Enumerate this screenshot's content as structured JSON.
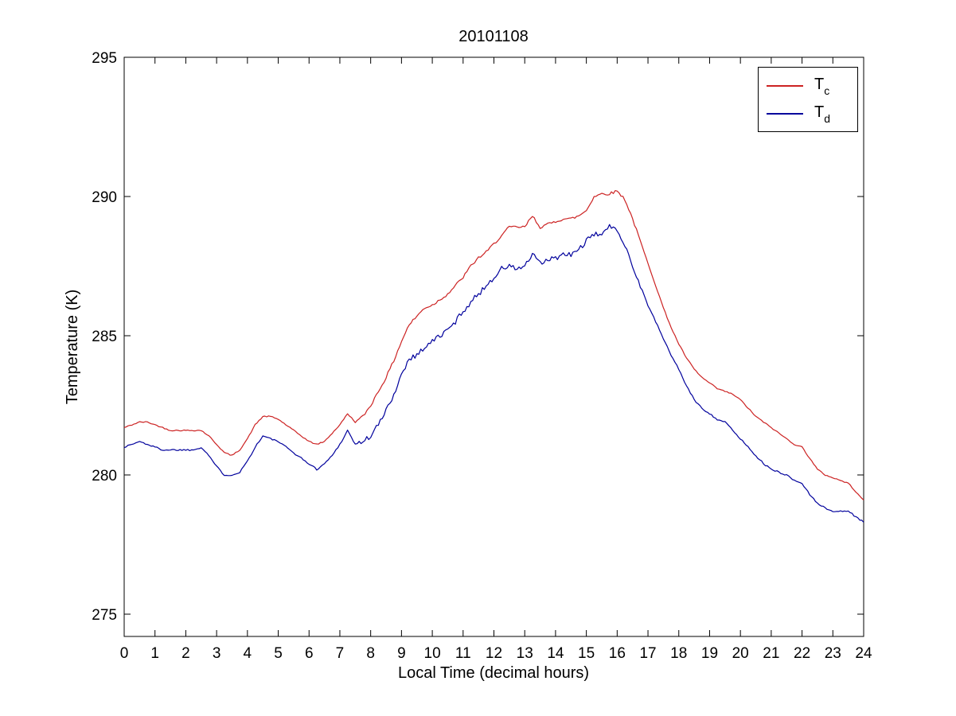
{
  "page": {
    "background": "#ffffff"
  },
  "chart_data": {
    "type": "line",
    "title": "20101108",
    "xlabel": "Local Time (decimal hours)",
    "ylabel": "Temperature (K)",
    "xlim": [
      0,
      24
    ],
    "ylim": [
      274.2,
      295
    ],
    "xticks": [
      0,
      1,
      2,
      3,
      4,
      5,
      6,
      7,
      8,
      9,
      10,
      11,
      12,
      13,
      14,
      15,
      16,
      17,
      18,
      19,
      20,
      21,
      22,
      23,
      24
    ],
    "yticks": [
      275,
      280,
      285,
      290,
      295
    ],
    "grid": false,
    "legend_position": "top-right",
    "x_start": 0,
    "x_step": 0.25,
    "series": [
      {
        "label_main": "T",
        "label_sub": "c",
        "color": "#cc2222",
        "values": [
          281.7,
          281.8,
          281.9,
          281.9,
          281.8,
          281.7,
          281.6,
          281.6,
          281.6,
          281.6,
          281.6,
          281.4,
          281.1,
          280.8,
          280.7,
          280.9,
          281.3,
          281.8,
          282.1,
          282.1,
          282.0,
          281.8,
          281.6,
          281.4,
          281.2,
          281.1,
          281.2,
          281.5,
          281.8,
          282.2,
          281.9,
          282.1,
          282.5,
          283.0,
          283.5,
          284.1,
          284.8,
          285.4,
          285.7,
          286.0,
          286.1,
          286.3,
          286.5,
          286.8,
          287.1,
          287.5,
          287.8,
          288.0,
          288.3,
          288.6,
          288.9,
          288.9,
          288.9,
          289.3,
          288.9,
          289.0,
          289.1,
          289.2,
          289.2,
          289.3,
          289.5,
          290.0,
          290.1,
          290.1,
          290.2,
          289.9,
          289.2,
          288.4,
          287.6,
          286.8,
          286.0,
          285.3,
          284.7,
          284.2,
          283.8,
          283.5,
          283.3,
          283.1,
          283.0,
          282.9,
          282.7,
          282.4,
          282.1,
          281.9,
          281.7,
          281.5,
          281.3,
          281.1,
          281.0,
          280.6,
          280.2,
          280.0,
          279.9,
          279.8,
          279.7,
          279.4,
          279.1
        ]
      },
      {
        "label_main": "T",
        "label_sub": "d",
        "color": "#00009c",
        "values": [
          281.0,
          281.1,
          281.2,
          281.1,
          281.0,
          280.9,
          280.9,
          280.9,
          280.9,
          280.9,
          281.0,
          280.7,
          280.3,
          280.0,
          280.0,
          280.1,
          280.5,
          281.0,
          281.4,
          281.3,
          281.2,
          281.0,
          280.8,
          280.6,
          280.4,
          280.2,
          280.4,
          280.7,
          281.1,
          281.6,
          281.1,
          281.2,
          281.4,
          281.8,
          282.3,
          282.9,
          283.6,
          284.2,
          284.3,
          284.6,
          284.8,
          285.0,
          285.2,
          285.5,
          285.9,
          286.2,
          286.5,
          286.8,
          287.1,
          287.4,
          287.5,
          287.4,
          287.5,
          287.9,
          287.6,
          287.7,
          287.8,
          287.9,
          287.9,
          288.1,
          288.4,
          288.6,
          288.7,
          288.9,
          288.8,
          288.3,
          287.5,
          286.8,
          286.1,
          285.5,
          284.9,
          284.3,
          283.8,
          283.2,
          282.7,
          282.4,
          282.2,
          282.0,
          281.9,
          281.6,
          281.3,
          281.0,
          280.7,
          280.4,
          280.2,
          280.1,
          280.0,
          279.8,
          279.7,
          279.3,
          279.0,
          278.8,
          278.7,
          278.7,
          278.7,
          278.5,
          278.3
        ]
      }
    ]
  }
}
